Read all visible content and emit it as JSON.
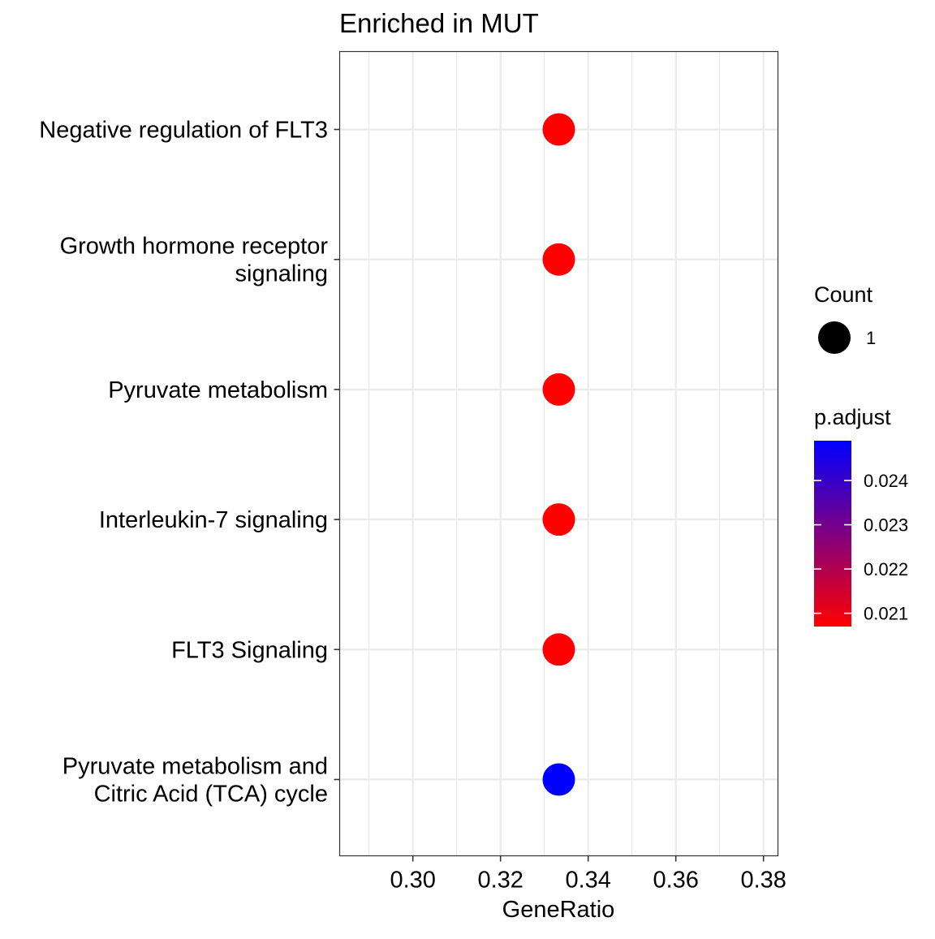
{
  "chart_data": {
    "type": "scatter",
    "title": "Enriched in MUT",
    "xlabel": "GeneRatio",
    "ylabel": "",
    "xlim": [
      0.2833,
      0.3833
    ],
    "x_ticks": [
      0.3,
      0.32,
      0.34,
      0.36,
      0.38
    ],
    "x_tick_labels": [
      "0.30",
      "0.32",
      "0.34",
      "0.36",
      "0.38"
    ],
    "grid": true,
    "categories": [
      [
        "Negative regulation of FLT3"
      ],
      [
        "Growth hormone receptor",
        "signaling"
      ],
      [
        "Pyruvate metabolism"
      ],
      [
        "Interleukin-7 signaling"
      ],
      [
        "FLT3 Signaling"
      ],
      [
        "Pyruvate metabolism and",
        "Citric Acid (TCA) cycle"
      ]
    ],
    "points": [
      {
        "gene_ratio": 0.3333,
        "count": 1,
        "p_adjust": 0.0207
      },
      {
        "gene_ratio": 0.3333,
        "count": 1,
        "p_adjust": 0.0207
      },
      {
        "gene_ratio": 0.3333,
        "count": 1,
        "p_adjust": 0.0207
      },
      {
        "gene_ratio": 0.3333,
        "count": 1,
        "p_adjust": 0.0207
      },
      {
        "gene_ratio": 0.3333,
        "count": 1,
        "p_adjust": 0.0207
      },
      {
        "gene_ratio": 0.3333,
        "count": 1,
        "p_adjust": 0.0249
      }
    ],
    "legend": {
      "placement": "right",
      "size": {
        "title": "Count",
        "values": [
          1
        ],
        "labels": [
          "1"
        ]
      },
      "color": {
        "title": "p.adjust",
        "range": [
          0.0207,
          0.0249
        ],
        "ticks": [
          0.021,
          0.022,
          0.023,
          0.024
        ],
        "tick_labels": [
          "0.021",
          "0.022",
          "0.023",
          "0.024"
        ],
        "low_color": "#ff0000",
        "high_color": "#0000ff"
      }
    }
  }
}
